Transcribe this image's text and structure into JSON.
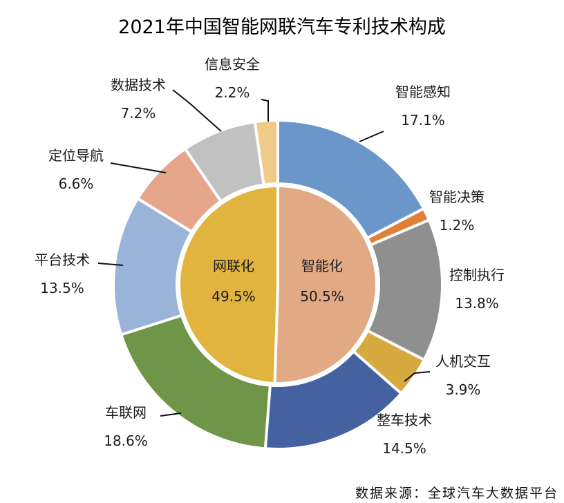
{
  "chart_data": {
    "type": "pie",
    "title": "2021年中国智能网联汽车专利技术构成",
    "source": "数据来源：全球汽车大数据平台",
    "inner_ring": [
      {
        "label": "智能化",
        "value": 50.5,
        "value_text": "50.5%",
        "color": "#e2a985"
      },
      {
        "label": "网联化",
        "value": 49.5,
        "value_text": "49.5%",
        "color": "#e0b43e"
      }
    ],
    "outer_ring": [
      {
        "label": "智能感知",
        "value": 17.1,
        "value_text": "17.1%",
        "color": "#6a96c9"
      },
      {
        "label": "智能决策",
        "value": 1.2,
        "value_text": "1.2%",
        "color": "#e07f38"
      },
      {
        "label": "控制执行",
        "value": 13.8,
        "value_text": "13.8%",
        "color": "#8f8f8f"
      },
      {
        "label": "人机交互",
        "value": 3.9,
        "value_text": "3.9%",
        "color": "#d6aa3e"
      },
      {
        "label": "整车技术",
        "value": 14.5,
        "value_text": "14.5%",
        "color": "#4461a0"
      },
      {
        "label": "车联网",
        "value": 18.6,
        "value_text": "18.6%",
        "color": "#6f9549"
      },
      {
        "label": "平台技术",
        "value": 13.5,
        "value_text": "13.5%",
        "color": "#9ab3d8"
      },
      {
        "label": "定位导航",
        "value": 6.6,
        "value_text": "6.6%",
        "color": "#e5a68c"
      },
      {
        "label": "数据技术",
        "value": 7.2,
        "value_text": "7.2%",
        "color": "#c1c1c1"
      },
      {
        "label": "信息安全",
        "value": 2.2,
        "value_text": "2.2%",
        "color": "#f0ca88"
      }
    ]
  }
}
